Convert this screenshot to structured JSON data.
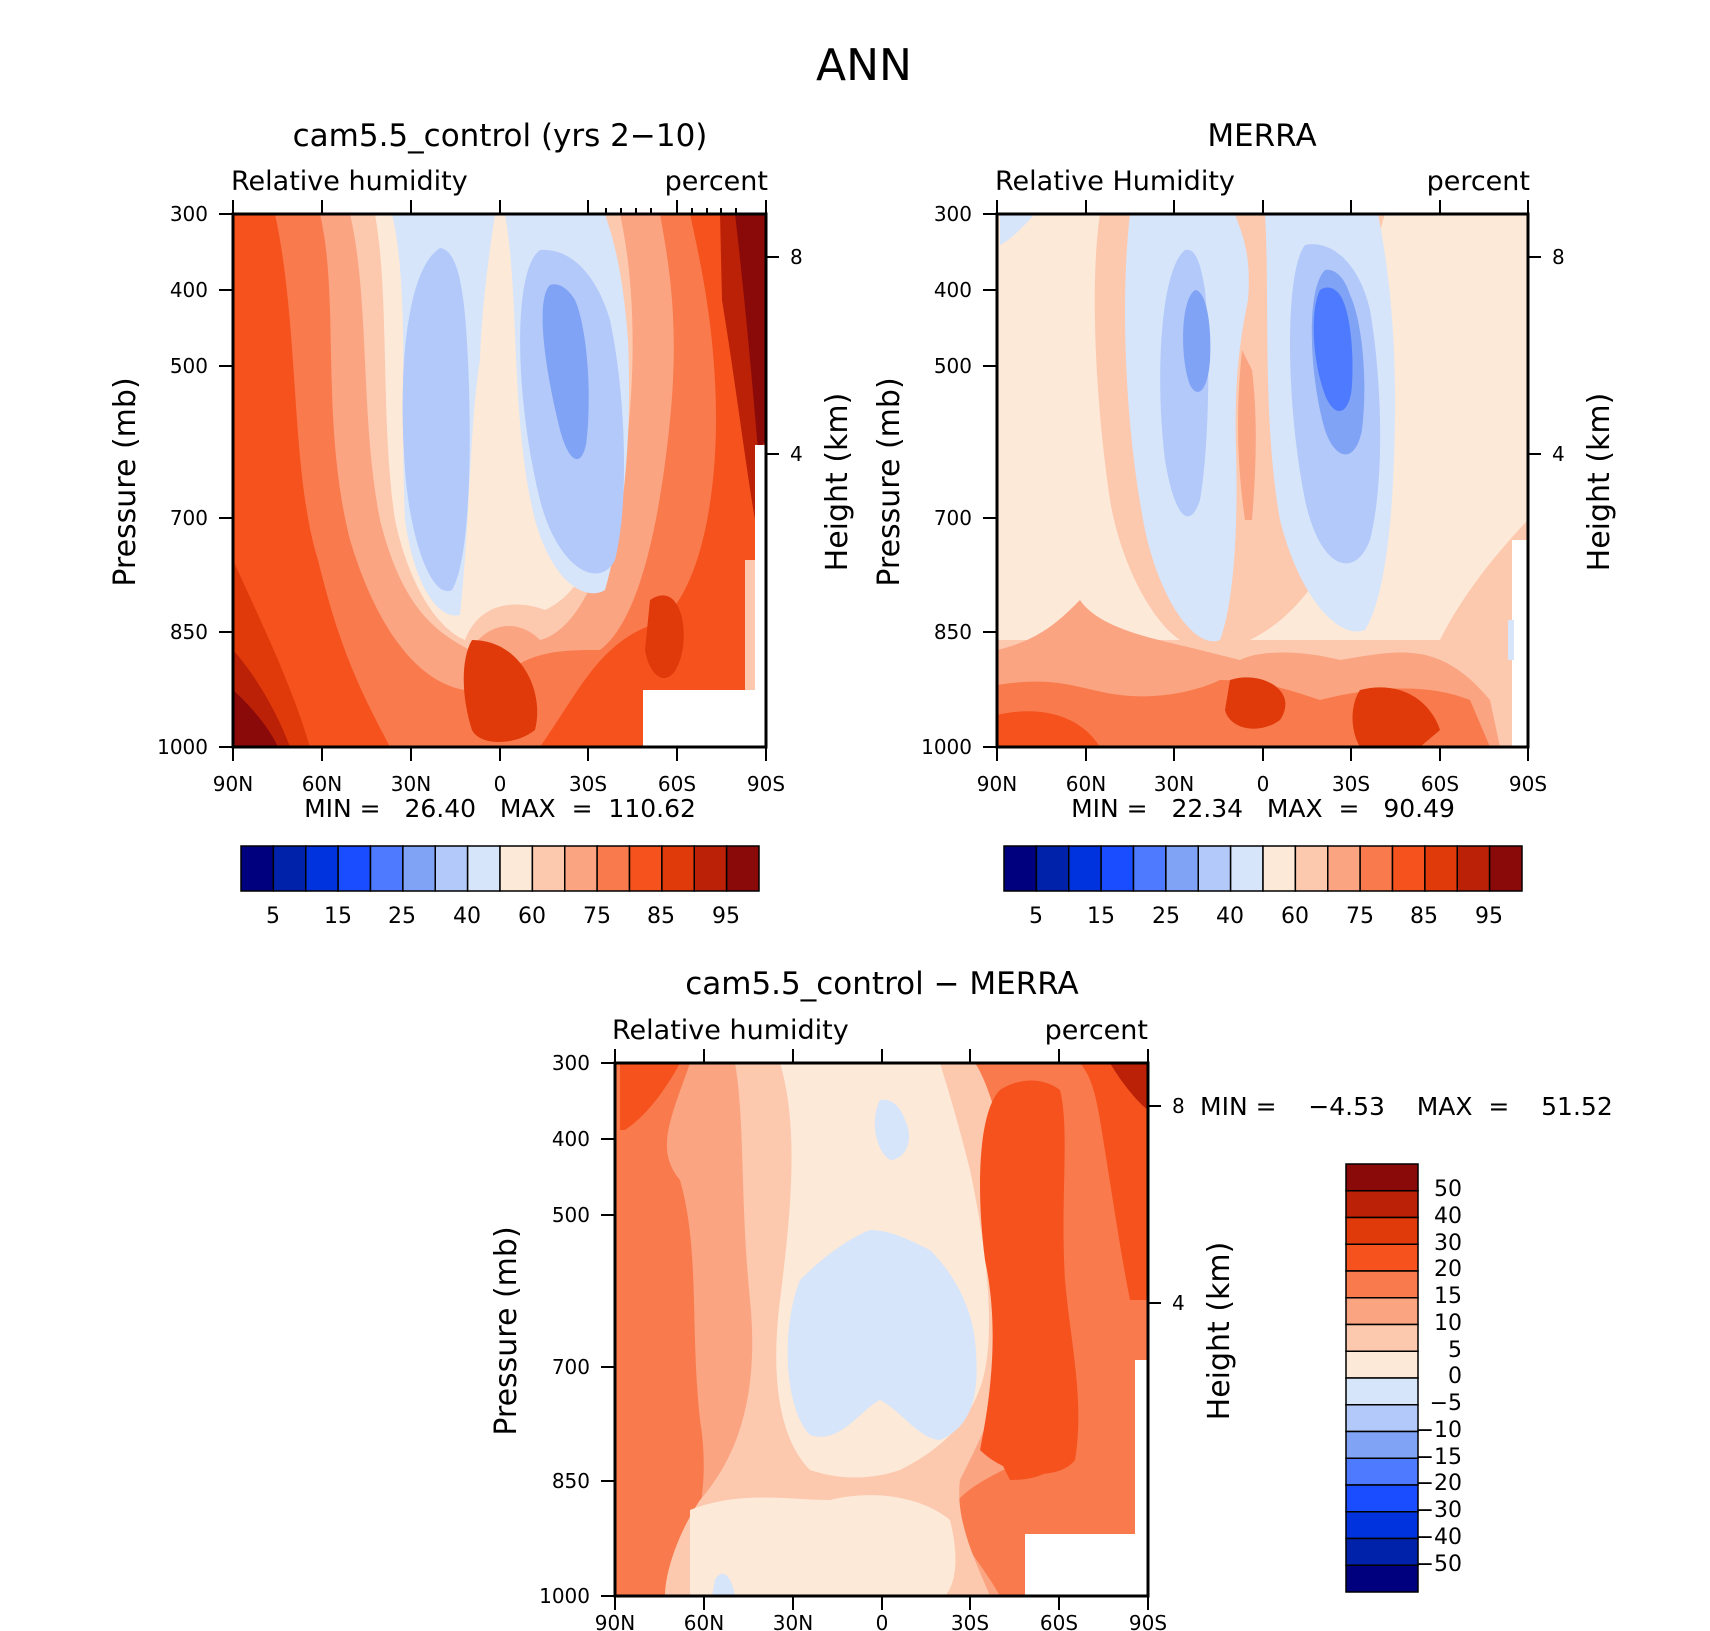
{
  "figure": {
    "title": "ANN"
  },
  "colors": {
    "abs": [
      "#00007f",
      "#0022aa",
      "#0033dd",
      "#1a4dff",
      "#4d7aff",
      "#80a3f5",
      "#b3c9fa",
      "#d6e5fa",
      "#fde9d8",
      "#fcc8ae",
      "#faa482",
      "#f97a4c",
      "#f5521e",
      "#e03a0a",
      "#bb2106",
      "#8a0a0a"
    ],
    "diff": [
      "#00007f",
      "#0022aa",
      "#0033dd",
      "#1a4dff",
      "#4d7aff",
      "#80a3f5",
      "#b3c9fa",
      "#d6e5fa",
      "#fde9d8",
      "#fcc8ae",
      "#faa482",
      "#f97a4c",
      "#f5521e",
      "#e03a0a",
      "#bb2106",
      "#8a0a0a"
    ]
  },
  "chart_data": [
    {
      "type": "heatmap",
      "title": "cam5.5_control (yrs 2−10)",
      "subtitle_left": "Relative humidity",
      "subtitle_right": "percent",
      "ylabel": "Pressure (mb)",
      "ylabel_right": "Height (km)",
      "x_ticks": [
        "90N",
        "60N",
        "30N",
        "0",
        "30S",
        "60S",
        "90S"
      ],
      "y_ticks": [
        "300",
        "400",
        "500",
        "700",
        "850",
        "1000"
      ],
      "y_ticks_right": [
        "8",
        "4"
      ],
      "min_max": "MIN =   26.40   MAX  =  110.62",
      "colorbar_labels": [
        "5",
        "15",
        "25",
        "40",
        "60",
        "75",
        "85",
        "95"
      ],
      "levels": [
        5,
        10,
        15,
        20,
        25,
        30,
        40,
        50,
        60,
        70,
        75,
        80,
        85,
        90,
        95
      ]
    },
    {
      "type": "heatmap",
      "title": "MERRA",
      "subtitle_left": "Relative Humidity",
      "subtitle_right": "percent",
      "ylabel": "Pressure (mb)",
      "ylabel_right": "Height (km)",
      "x_ticks": [
        "90N",
        "60N",
        "30N",
        "0",
        "30S",
        "60S",
        "90S"
      ],
      "y_ticks": [
        "300",
        "400",
        "500",
        "700",
        "850",
        "1000"
      ],
      "y_ticks_right": [
        "8",
        "4"
      ],
      "min_max": "MIN =   22.34   MAX  =   90.49",
      "colorbar_labels": [
        "5",
        "15",
        "25",
        "40",
        "60",
        "75",
        "85",
        "95"
      ],
      "levels": [
        5,
        10,
        15,
        20,
        25,
        30,
        40,
        50,
        60,
        70,
        75,
        80,
        85,
        90,
        95
      ]
    },
    {
      "type": "heatmap",
      "title": "cam5.5_control − MERRA",
      "subtitle_left": "Relative humidity",
      "subtitle_right": "percent",
      "ylabel": "Pressure (mb)",
      "ylabel_right": "Height (km)",
      "x_ticks": [
        "90N",
        "60N",
        "30N",
        "0",
        "30S",
        "60S",
        "90S"
      ],
      "y_ticks": [
        "300",
        "400",
        "500",
        "700",
        "850",
        "1000"
      ],
      "y_ticks_right": [
        "8",
        "4"
      ],
      "min_max": "MIN =    −4.53    MAX  =    51.52",
      "colorbar_labels": [
        "50",
        "40",
        "30",
        "20",
        "15",
        "10",
        "5",
        "0",
        "−5",
        "−10",
        "−15",
        "−20",
        "−30",
        "−40",
        "−50"
      ],
      "levels": [
        -50,
        -40,
        -30,
        -20,
        -15,
        -10,
        -5,
        0,
        5,
        10,
        15,
        20,
        30,
        40,
        50
      ]
    }
  ]
}
